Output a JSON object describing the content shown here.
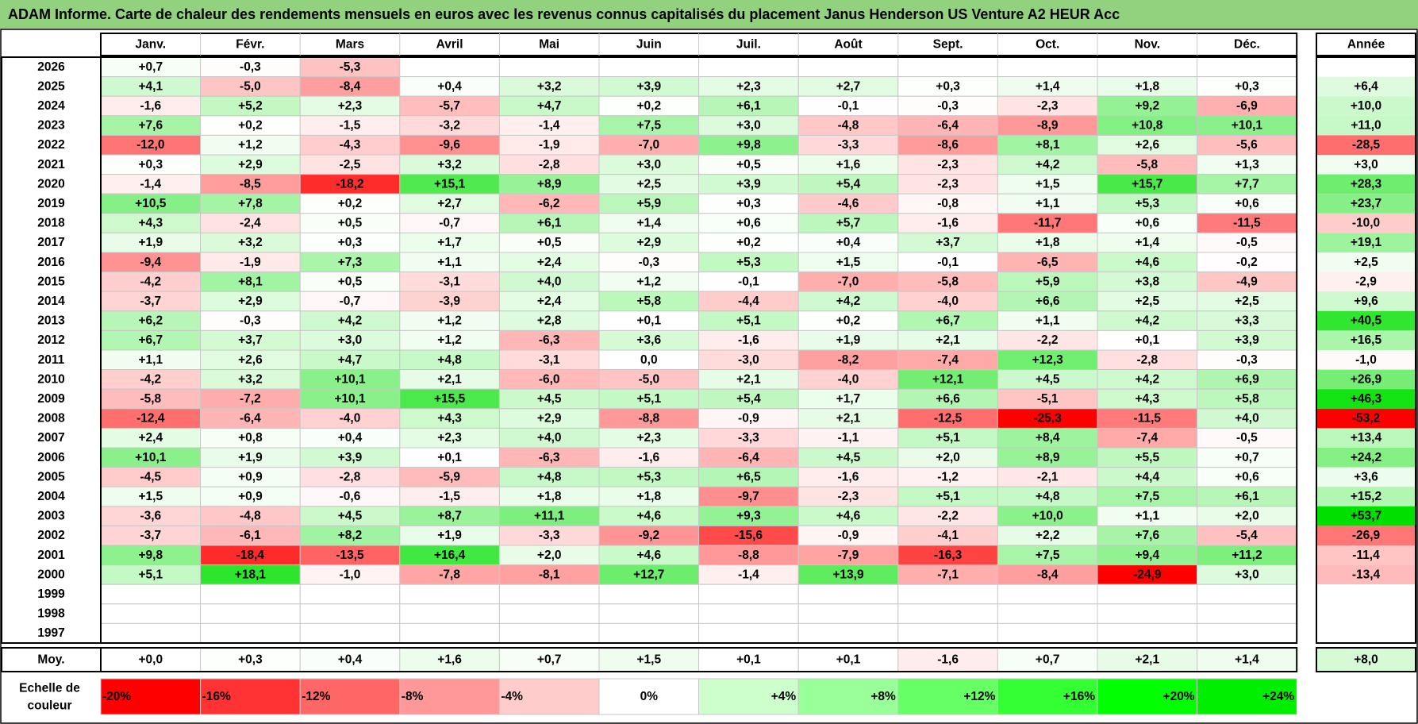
{
  "title": "ADAM Informe. Carte de chaleur des rendements mensuels en euros avec les revenus connus capitalisés du placement Janus Henderson US Venture A2 HEUR Acc",
  "chart_data": {
    "type": "heatmap",
    "title": "ADAM Informe. Carte de chaleur des rendements mensuels en euros avec les revenus connus capitalisés du placement Janus Henderson US Venture A2 HEUR Acc",
    "months": [
      "Janv.",
      "Févr.",
      "Mars",
      "Avril",
      "Mai",
      "Juin",
      "Juil.",
      "Août",
      "Sept.",
      "Oct.",
      "Nov.",
      "Déc."
    ],
    "year_column_label": "Année",
    "rows": [
      {
        "year": "2026",
        "values": [
          "+0,7",
          "-0,3",
          "-5,3",
          "",
          "",
          "",
          "",
          "",
          "",
          "",
          "",
          ""
        ],
        "annual": ""
      },
      {
        "year": "2025",
        "values": [
          "+4,1",
          "-5,0",
          "-8,4",
          "+0,4",
          "+3,2",
          "+3,9",
          "+2,3",
          "+2,7",
          "+0,3",
          "+1,4",
          "+1,8",
          "+0,3"
        ],
        "annual": "+6,4"
      },
      {
        "year": "2024",
        "values": [
          "-1,6",
          "+5,2",
          "+2,3",
          "-5,7",
          "+4,7",
          "+0,2",
          "+6,1",
          "-0,1",
          "-0,3",
          "-2,3",
          "+9,2",
          "-6,9"
        ],
        "annual": "+10,0"
      },
      {
        "year": "2023",
        "values": [
          "+7,6",
          "+0,2",
          "-1,5",
          "-3,2",
          "-1,4",
          "+7,5",
          "+3,0",
          "-4,8",
          "-6,4",
          "-8,9",
          "+10,8",
          "+10,1"
        ],
        "annual": "+11,0"
      },
      {
        "year": "2022",
        "values": [
          "-12,0",
          "+1,2",
          "-4,3",
          "-9,6",
          "-1,9",
          "-7,0",
          "+9,8",
          "-3,3",
          "-8,6",
          "+8,1",
          "+2,6",
          "-5,6"
        ],
        "annual": "-28,5"
      },
      {
        "year": "2021",
        "values": [
          "+0,3",
          "+2,9",
          "-2,5",
          "+3,2",
          "-2,8",
          "+3,0",
          "+0,5",
          "+1,6",
          "-2,3",
          "+4,2",
          "-5,8",
          "+1,3"
        ],
        "annual": "+3,0"
      },
      {
        "year": "2020",
        "values": [
          "-1,4",
          "-8,5",
          "-18,2",
          "+15,1",
          "+8,9",
          "+2,5",
          "+3,9",
          "+5,4",
          "-2,3",
          "+1,5",
          "+15,7",
          "+7,7"
        ],
        "annual": "+28,3"
      },
      {
        "year": "2019",
        "values": [
          "+10,5",
          "+7,8",
          "+0,2",
          "+2,7",
          "-6,2",
          "+5,9",
          "+0,3",
          "-4,6",
          "-0,8",
          "+1,1",
          "+5,3",
          "+0,6"
        ],
        "annual": "+23,7"
      },
      {
        "year": "2018",
        "values": [
          "+4,3",
          "-2,4",
          "+0,5",
          "-0,7",
          "+6,1",
          "+1,4",
          "+0,6",
          "+5,7",
          "-1,6",
          "-11,7",
          "+0,6",
          "-11,5"
        ],
        "annual": "-10,0"
      },
      {
        "year": "2017",
        "values": [
          "+1,9",
          "+3,2",
          "+0,3",
          "+1,7",
          "+0,5",
          "+2,9",
          "+0,2",
          "+0,4",
          "+3,7",
          "+1,8",
          "+1,4",
          "-0,5"
        ],
        "annual": "+19,1"
      },
      {
        "year": "2016",
        "values": [
          "-9,4",
          "-1,9",
          "+7,3",
          "+1,1",
          "+2,4",
          "-0,3",
          "+5,3",
          "+1,5",
          "-0,1",
          "-6,5",
          "+4,6",
          "-0,2"
        ],
        "annual": "+2,5"
      },
      {
        "year": "2015",
        "values": [
          "-4,2",
          "+8,1",
          "+0,5",
          "-3,1",
          "+4,0",
          "+1,2",
          "-0,1",
          "-7,0",
          "-5,8",
          "+5,9",
          "+3,8",
          "-4,9"
        ],
        "annual": "-2,9"
      },
      {
        "year": "2014",
        "values": [
          "-3,7",
          "+2,9",
          "-0,7",
          "-3,9",
          "+2,4",
          "+5,8",
          "-4,4",
          "+4,2",
          "-4,0",
          "+6,6",
          "+2,5",
          "+2,5"
        ],
        "annual": "+9,6"
      },
      {
        "year": "2013",
        "values": [
          "+6,2",
          "-0,3",
          "+4,2",
          "+1,2",
          "+2,8",
          "+0,1",
          "+5,1",
          "+0,2",
          "+6,7",
          "+1,1",
          "+4,2",
          "+3,3"
        ],
        "annual": "+40,5"
      },
      {
        "year": "2012",
        "values": [
          "+6,7",
          "+3,7",
          "+3,0",
          "+1,2",
          "-6,3",
          "+3,6",
          "-1,6",
          "+1,9",
          "+2,1",
          "-2,2",
          "+0,1",
          "+3,9"
        ],
        "annual": "+16,5"
      },
      {
        "year": "2011",
        "values": [
          "+1,1",
          "+2,6",
          "+4,7",
          "+4,8",
          "-3,1",
          "0,0",
          "-3,0",
          "-8,2",
          "-7,4",
          "+12,3",
          "-2,8",
          "-0,3"
        ],
        "annual": "-1,0"
      },
      {
        "year": "2010",
        "values": [
          "-4,2",
          "+3,2",
          "+10,1",
          "+2,1",
          "-6,0",
          "-5,0",
          "+2,1",
          "-4,0",
          "+12,1",
          "+4,5",
          "+4,2",
          "+6,9"
        ],
        "annual": "+26,9"
      },
      {
        "year": "2009",
        "values": [
          "-5,8",
          "-7,2",
          "+10,1",
          "+15,5",
          "+4,5",
          "+5,1",
          "+5,4",
          "+1,7",
          "+6,6",
          "-5,1",
          "+4,3",
          "+5,8"
        ],
        "annual": "+46,3"
      },
      {
        "year": "2008",
        "values": [
          "-12,4",
          "-6,4",
          "-4,0",
          "+4,3",
          "+2,9",
          "-8,8",
          "-0,9",
          "+2,1",
          "-12,5",
          "-25,3",
          "-11,5",
          "+4,0"
        ],
        "annual": "-53,2"
      },
      {
        "year": "2007",
        "values": [
          "+2,4",
          "+0,8",
          "+0,4",
          "+2,3",
          "+4,0",
          "+2,3",
          "-3,3",
          "-1,1",
          "+5,1",
          "+8,4",
          "-7,4",
          "-0,5"
        ],
        "annual": "+13,4"
      },
      {
        "year": "2006",
        "values": [
          "+10,1",
          "+1,9",
          "+3,9",
          "+0,1",
          "-6,3",
          "-1,6",
          "-6,4",
          "+4,5",
          "+2,0",
          "+8,9",
          "+5,5",
          "+0,7"
        ],
        "annual": "+24,2"
      },
      {
        "year": "2005",
        "values": [
          "-4,5",
          "+0,9",
          "-2,8",
          "-5,9",
          "+4,8",
          "+5,3",
          "+6,5",
          "-1,6",
          "-1,2",
          "-2,1",
          "+4,4",
          "+0,6"
        ],
        "annual": "+3,6"
      },
      {
        "year": "2004",
        "values": [
          "+1,5",
          "+0,9",
          "-0,6",
          "-1,5",
          "+1,8",
          "+1,8",
          "-9,7",
          "-2,3",
          "+5,1",
          "+4,8",
          "+7,5",
          "+6,1"
        ],
        "annual": "+15,2"
      },
      {
        "year": "2003",
        "values": [
          "-3,6",
          "-4,8",
          "+4,5",
          "+8,7",
          "+11,1",
          "+4,6",
          "+9,3",
          "+4,6",
          "-2,2",
          "+10,0",
          "+1,1",
          "+2,0"
        ],
        "annual": "+53,7"
      },
      {
        "year": "2002",
        "values": [
          "-3,7",
          "-6,1",
          "+8,2",
          "+1,9",
          "-3,3",
          "-9,2",
          "-15,6",
          "-0,9",
          "-4,1",
          "+2,2",
          "+7,6",
          "-5,4"
        ],
        "annual": "-26,9"
      },
      {
        "year": "2001",
        "values": [
          "+9,8",
          "-18,4",
          "-13,5",
          "+16,4",
          "+2,0",
          "+4,6",
          "-8,8",
          "-7,9",
          "-16,3",
          "+7,5",
          "+9,4",
          "+11,2"
        ],
        "annual": "-11,4"
      },
      {
        "year": "2000",
        "values": [
          "+5,1",
          "+18,1",
          "-1,0",
          "-7,8",
          "-8,1",
          "+12,7",
          "-1,4",
          "+13,9",
          "-7,1",
          "-8,4",
          "-24,9",
          "+3,0"
        ],
        "annual": "-13,4"
      },
      {
        "year": "1999",
        "values": [
          "",
          "",
          "",
          "",
          "",
          "",
          "",
          "",
          "",
          "",
          "",
          ""
        ],
        "annual": ""
      },
      {
        "year": "1998",
        "values": [
          "",
          "",
          "",
          "",
          "",
          "",
          "",
          "",
          "",
          "",
          "",
          ""
        ],
        "annual": ""
      },
      {
        "year": "1997",
        "values": [
          "",
          "",
          "",
          "",
          "",
          "",
          "",
          "",
          "",
          "",
          "",
          ""
        ],
        "annual": ""
      }
    ],
    "average": {
      "label": "Moy.",
      "values": [
        "+0,0",
        "+0,3",
        "+0,4",
        "+1,6",
        "+0,7",
        "+1,5",
        "+0,1",
        "+0,1",
        "-1,6",
        "+0,7",
        "+2,1",
        "+1,4"
      ],
      "annual": "+8,0"
    },
    "scale": {
      "label_line1": "Echelle de",
      "label_line2": "couleur",
      "entries": [
        {
          "label": "-20%",
          "value": -20,
          "color": "#ff0000"
        },
        {
          "label": "-16%",
          "value": -16,
          "color": "#ff3333"
        },
        {
          "label": "-12%",
          "value": -12,
          "color": "#ff6666"
        },
        {
          "label": "-8%",
          "value": -8,
          "color": "#ff9999"
        },
        {
          "label": "-4%",
          "value": -4,
          "color": "#ffcccc"
        },
        {
          "label": "0%",
          "value": 0,
          "color": "#ffffff"
        },
        {
          "label": "+4%",
          "value": 4,
          "color": "#ccffcc"
        },
        {
          "label": "+8%",
          "value": 8,
          "color": "#99ff99"
        },
        {
          "label": "+12%",
          "value": 12,
          "color": "#66ff66"
        },
        {
          "label": "+16%",
          "value": 16,
          "color": "#33ff33"
        },
        {
          "label": "+20%",
          "value": 20,
          "color": "#00ff00"
        },
        {
          "label": "+24%",
          "value": 24,
          "color": "#00ee00"
        }
      ]
    },
    "colors": {
      "title_bar": "#92d27f",
      "border": "#000000",
      "grid": "#c8c8c8",
      "neg_full": "#ff0000",
      "pos_full": "#00e000"
    }
  }
}
